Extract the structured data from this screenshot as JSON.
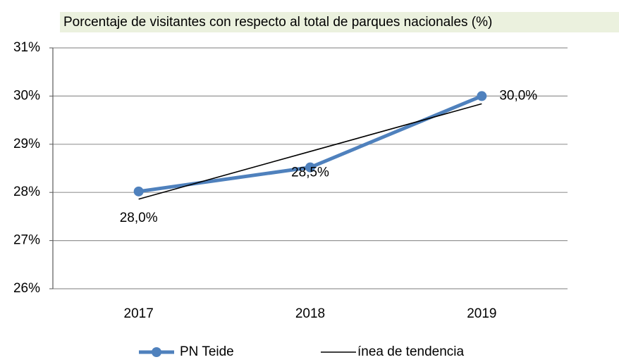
{
  "chart_data": {
    "type": "line",
    "title": "Porcentaje de visitantes  con respecto al total de parques nacionales  (%)",
    "categories": [
      "2017",
      "2018",
      "2019"
    ],
    "series": [
      {
        "name": "PN Teide",
        "color": "#4f81bd",
        "values": [
          28.02,
          28.52,
          30.0
        ],
        "value_labels": [
          "28,0%",
          "28,5%",
          "30,0%"
        ]
      },
      {
        "name": "ínea de tendencia",
        "color": "#000000",
        "values": [
          27.86,
          28.85,
          29.84
        ]
      }
    ],
    "ylim": [
      26,
      31
    ],
    "yticks": [
      {
        "value": 26,
        "label": "26%"
      },
      {
        "value": 27,
        "label": "27%"
      },
      {
        "value": 28,
        "label": "28%"
      },
      {
        "value": 29,
        "label": "29%"
      },
      {
        "value": 30,
        "label": "30%"
      },
      {
        "value": 31,
        "label": "31%"
      }
    ],
    "grid": true,
    "legend": "bottom"
  }
}
